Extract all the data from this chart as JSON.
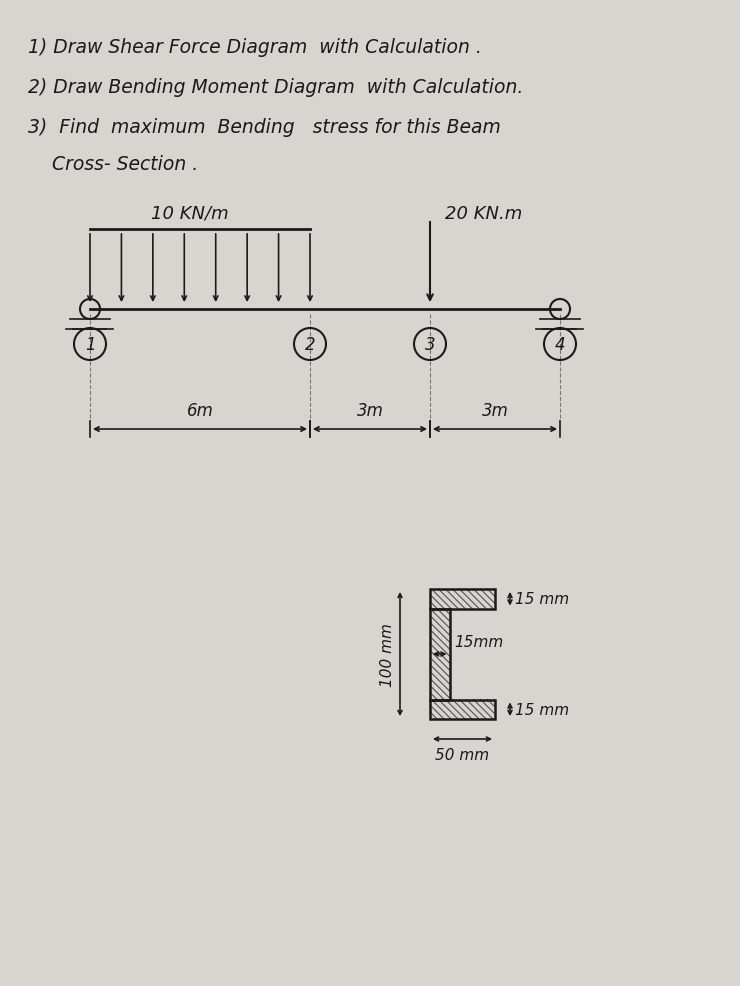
{
  "bg_color": "#d8d5d0",
  "text_color": "#1a1a1a",
  "line1": "1) Draw Shear Force Diagram  with Calculation .",
  "line2": "2) Draw Bending Moment Diagram  with Calculation.",
  "line3": "3)  Find  maximum  Bending   stress for this Beam",
  "line4": "    Cross- Section .",
  "beam_label_udl": "10 KN/m",
  "beam_label_moment": "20 KN.m",
  "span1": "6m",
  "span2": "3m",
  "span3": "3m",
  "node_labels": [
    "1",
    "2",
    "3",
    "4"
  ],
  "cs_label_top": "15 mm",
  "cs_label_web": "15mm",
  "cs_label_bot": "15 mm",
  "cs_label_height": "100 mm",
  "cs_label_width": "50 mm"
}
